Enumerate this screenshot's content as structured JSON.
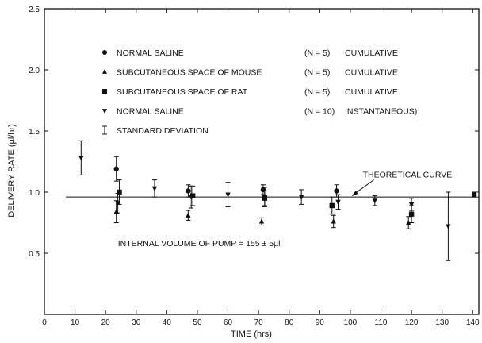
{
  "chart_data": {
    "type": "scatter",
    "title": "",
    "xlabel": "TIME (hrs)",
    "ylabel": "DELIVERY RATE (µl/hr)",
    "xlim": [
      0,
      142
    ],
    "ylim": [
      0,
      2.5
    ],
    "x_ticks": [
      0,
      10,
      20,
      30,
      40,
      50,
      60,
      70,
      80,
      90,
      100,
      110,
      120,
      130,
      140
    ],
    "y_ticks": [
      0.5,
      1.0,
      1.5,
      2.0,
      2.5
    ],
    "x_tick_labels": [
      "0",
      "10",
      "20",
      "30",
      "40",
      "50",
      "60",
      "70",
      "80",
      "90",
      "100",
      "110",
      "120",
      "130",
      "140"
    ],
    "y_tick_labels": [
      "0.5",
      "1.0",
      "1.5",
      "2.0",
      "2.5"
    ],
    "grid": false,
    "legend_position": "top-left",
    "legend": [
      {
        "marker": "circle",
        "name": "NORMAL SALINE",
        "n": "(N = 5)",
        "kind": "CUMULATIVE"
      },
      {
        "marker": "triangle-up",
        "name": "SUBCUTANEOUS SPACE OF MOUSE",
        "n": "(N = 5)",
        "kind": "CUMULATIVE"
      },
      {
        "marker": "square",
        "name": "SUBCUTANEOUS SPACE OF RAT",
        "n": "(N = 5)",
        "kind": "CUMULATIVE"
      },
      {
        "marker": "triangle-down",
        "name": "NORMAL SALINE",
        "n": "(N = 10)",
        "kind": "INSTANTANEOUS)"
      },
      {
        "marker": "errorbar",
        "name": "STANDARD DEVIATION",
        "n": "",
        "kind": ""
      }
    ],
    "reference_line": {
      "y": 0.96,
      "x_start": 7,
      "x_end": 142
    },
    "annotations": [
      {
        "text": "THEORETICAL CURVE",
        "x": 102,
        "y": 1.12
      },
      {
        "text": "INTERNAL VOLUME OF PUMP = 155 ± 5µl",
        "x": 23,
        "y": 0.56
      }
    ],
    "series": [
      {
        "marker": "circle",
        "points": [
          {
            "x": 23.5,
            "y": 1.19,
            "sd": 0.1
          },
          {
            "x": 47,
            "y": 1.01,
            "sd": 0.05
          },
          {
            "x": 71.5,
            "y": 1.02,
            "sd": 0.04
          },
          {
            "x": 95.5,
            "y": 1.01,
            "sd": 0.05
          },
          {
            "x": 140.5,
            "y": 0.98,
            "sd": 0.02
          }
        ]
      },
      {
        "marker": "triangle-up",
        "points": [
          {
            "x": 23.5,
            "y": 0.84,
            "sd": 0.09
          },
          {
            "x": 47,
            "y": 0.81,
            "sd": 0.04
          },
          {
            "x": 71,
            "y": 0.76,
            "sd": 0.03
          },
          {
            "x": 94.5,
            "y": 0.76,
            "sd": 0.05
          },
          {
            "x": 119,
            "y": 0.75,
            "sd": 0.05
          }
        ]
      },
      {
        "marker": "square",
        "points": [
          {
            "x": 24.5,
            "y": 1.0,
            "sd": 0.1
          },
          {
            "x": 48.5,
            "y": 0.97,
            "sd": 0.08
          },
          {
            "x": 72,
            "y": 0.95,
            "sd": 0.06
          },
          {
            "x": 94,
            "y": 0.89,
            "sd": 0.07
          },
          {
            "x": 120,
            "y": 0.82,
            "sd": 0.07
          }
        ]
      },
      {
        "marker": "triangle-down",
        "points": [
          {
            "x": 12,
            "y": 1.28,
            "sd": 0.14
          },
          {
            "x": 24,
            "y": 0.91,
            "sd": 0.08
          },
          {
            "x": 36,
            "y": 1.03,
            "sd": 0.07
          },
          {
            "x": 48,
            "y": 0.96,
            "sd": 0.09
          },
          {
            "x": 60,
            "y": 0.98,
            "sd": 0.1
          },
          {
            "x": 72,
            "y": 0.96,
            "sd": 0.08
          },
          {
            "x": 84,
            "y": 0.96,
            "sd": 0.06
          },
          {
            "x": 96,
            "y": 0.92,
            "sd": 0.06
          },
          {
            "x": 108,
            "y": 0.93,
            "sd": 0.04
          },
          {
            "x": 120,
            "y": 0.9,
            "sd": 0.05
          },
          {
            "x": 132,
            "y": 0.72,
            "sd": 0.28
          }
        ]
      }
    ]
  }
}
